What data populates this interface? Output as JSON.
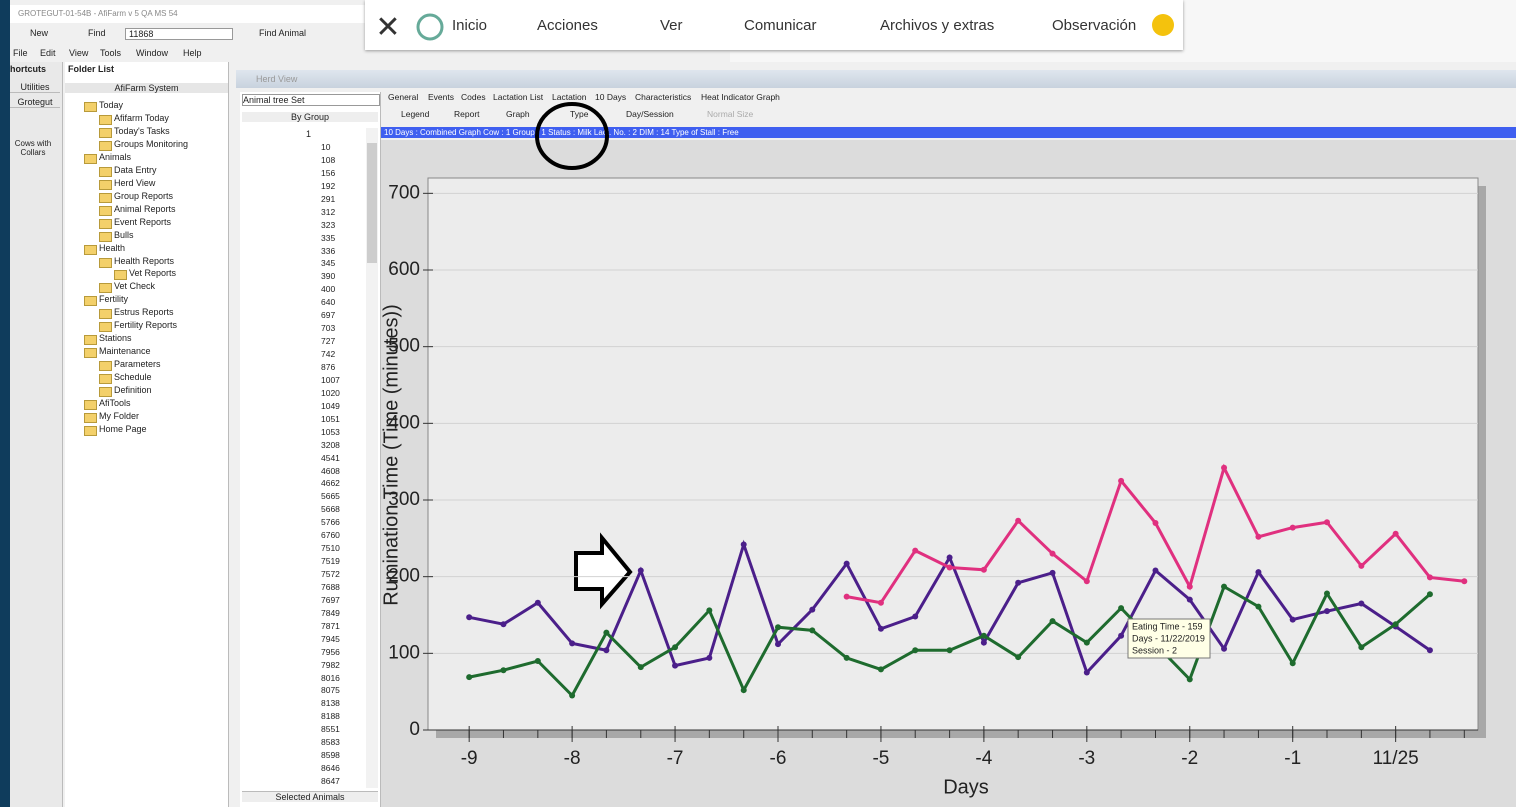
{
  "window": {
    "title": "GROTEGUT-01-54B - AfiFarm v 5 QA MS 54",
    "toolbar": [
      "New",
      "Find",
      "11868",
      "Find Animal"
    ],
    "menu": [
      "File",
      "Edit",
      "View",
      "Tools",
      "Window",
      "Help"
    ]
  },
  "overlay_toolbar": [
    "Inicio",
    "Acciones",
    "Ver",
    "Comunicar",
    "Archivos y extras",
    "Observación"
  ],
  "shortcuts": {
    "header": "hortcuts",
    "items": [
      "Utilities",
      "Grotegut",
      "Cows with Collars"
    ]
  },
  "folder_list": {
    "header": "Folder List",
    "root": "AfiFarm System",
    "items": [
      {
        "label": "Today",
        "children": [
          {
            "label": "Afifarm Today"
          },
          {
            "label": "Today's Tasks"
          },
          {
            "label": "Groups Monitoring"
          }
        ]
      },
      {
        "label": "Animals",
        "children": [
          {
            "label": "Data Entry"
          },
          {
            "label": "Herd View"
          },
          {
            "label": "Group Reports"
          },
          {
            "label": "Animal Reports"
          },
          {
            "label": "Event Reports"
          },
          {
            "label": "Bulls"
          }
        ]
      },
      {
        "label": "Health",
        "children": [
          {
            "label": "Health Reports",
            "children": [
              {
                "label": "Vet Reports"
              }
            ]
          },
          {
            "label": "Vet Check"
          }
        ]
      },
      {
        "label": "Fertility",
        "children": [
          {
            "label": "Estrus Reports"
          },
          {
            "label": "Fertility Reports"
          }
        ]
      },
      {
        "label": "Stations"
      },
      {
        "label": "Maintenance",
        "children": [
          {
            "label": "Parameters"
          },
          {
            "label": "Schedule"
          },
          {
            "label": "Definition"
          }
        ]
      },
      {
        "label": "AfiTools"
      },
      {
        "label": "My Folder"
      },
      {
        "label": "Home Page"
      }
    ]
  },
  "herd_view": {
    "title": "Herd View",
    "tree_set": "Animal tree Set",
    "by_group": "By Group",
    "group": "1",
    "animals": [
      "10",
      "108",
      "156",
      "192",
      "291",
      "312",
      "323",
      "335",
      "336",
      "345",
      "390",
      "400",
      "640",
      "697",
      "703",
      "727",
      "742",
      "876",
      "1007",
      "1020",
      "1049",
      "1051",
      "1053",
      "3208",
      "4541",
      "4608",
      "4662",
      "5665",
      "5668",
      "5766",
      "6760",
      "7510",
      "7519",
      "7572",
      "7688",
      "7697",
      "7849",
      "7871",
      "7945",
      "7956",
      "7982",
      "8016",
      "8075",
      "8138",
      "8188",
      "8551",
      "8583",
      "8598",
      "8646",
      "8647"
    ],
    "footer": "Selected Animals",
    "tabs": [
      "General",
      "Events",
      "Codes",
      "Lactation List",
      "Lactation",
      "10 Days",
      "Characteristics",
      "Heat Indicator Graph"
    ],
    "tools": [
      "Legend",
      "Report",
      "Graph",
      "Type",
      "Day/Session",
      "Normal Size"
    ],
    "status": "10 Days : Combined Graph    Cow : 1      Group : 1      Status : Milk    Lact. No. : 2    DIM : 14    Type of Stall : Free"
  },
  "chart_data": {
    "type": "line",
    "y_label": "Rumination Time  (Time (minutes))",
    "x_label": "Days",
    "x": [
      -9,
      -8.667,
      -8.333,
      -8,
      -7.667,
      -7.333,
      -7,
      -6.667,
      -6.333,
      -6,
      -5.667,
      -5.333,
      -5,
      -4.667,
      -4.333,
      -4,
      -3.667,
      -3.333,
      -3,
      -2.667,
      -2.333,
      -2,
      -1.667,
      -1.333,
      -1,
      -0.667,
      -0.333,
      0,
      0.333,
      0.667
    ],
    "series": [
      {
        "color": "#4b1f8a",
        "values": [
          147,
          138,
          166,
          113,
          104,
          208,
          84,
          94,
          242,
          112,
          157,
          217,
          132,
          148,
          225,
          114,
          192,
          205,
          75,
          123,
          208,
          170,
          106,
          206,
          144,
          155,
          165,
          135,
          104,
          null
        ]
      },
      {
        "color": "#1e6b2e",
        "values": [
          69,
          78,
          90,
          45,
          127,
          82,
          108,
          156,
          52,
          134,
          130,
          94,
          79,
          104,
          104,
          123,
          95,
          142,
          114,
          159,
          112,
          66,
          187,
          161,
          87,
          178,
          108,
          138,
          177,
          null
        ]
      },
      {
        "color": "#e0307f",
        "values": [
          null,
          null,
          null,
          null,
          null,
          null,
          null,
          null,
          null,
          null,
          null,
          174,
          166,
          234,
          212,
          209,
          273,
          230,
          194,
          325,
          270,
          187,
          342,
          252,
          264,
          271,
          214,
          256,
          199,
          194
        ]
      }
    ],
    "xlim": [
      -9.4,
      0.8
    ],
    "xticks": [
      -9,
      -8,
      -7,
      -6,
      -5,
      -4,
      -3,
      -2,
      -1,
      {
        "value": 0,
        "label": "11/25"
      }
    ],
    "ylim": [
      0,
      720
    ],
    "yticks": [
      0,
      100,
      200,
      300,
      400,
      500,
      600,
      700
    ],
    "grid": true,
    "annotations": [
      "Eating Time - 159",
      "Days - 11/22/2019",
      "Session - 2"
    ]
  }
}
